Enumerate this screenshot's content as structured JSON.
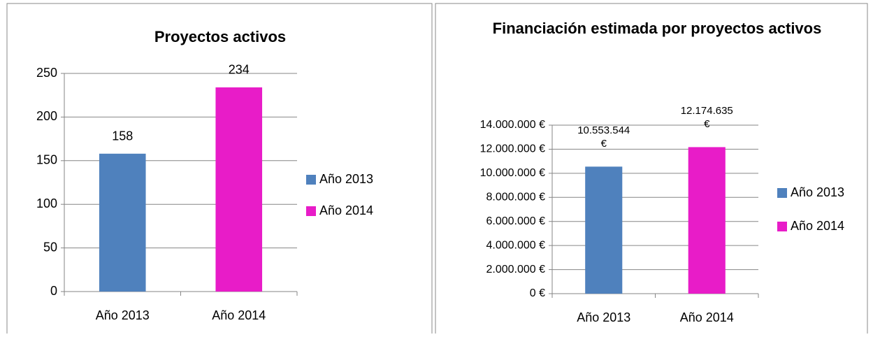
{
  "chart_data": [
    {
      "type": "bar",
      "title": "Proyectos activos",
      "categories": [
        "Año 2013",
        "Año 2014"
      ],
      "values": [
        158,
        234
      ],
      "colors": [
        "#4f81bd",
        "#e81cc8"
      ],
      "ylim": [
        0,
        250
      ],
      "yticks": [
        0,
        50,
        100,
        150,
        200,
        250
      ],
      "grid": true,
      "legend": "right"
    },
    {
      "type": "bar",
      "title": "Financiación estimada por proyectos activos",
      "categories": [
        "Año 2013",
        "Año 2014"
      ],
      "values": [
        10553544,
        12174635
      ],
      "value_labels": [
        "10.553.544 €",
        "12.174.635 €"
      ],
      "colors": [
        "#4f81bd",
        "#e81cc8"
      ],
      "ylim": [
        0,
        14000000
      ],
      "yticks": [
        {
          "value": 0,
          "label": "0 €"
        },
        {
          "value": 2000000,
          "label": "2.000.000 €"
        },
        {
          "value": 4000000,
          "label": "4.000.000 €"
        },
        {
          "value": 6000000,
          "label": "6.000.000 €"
        },
        {
          "value": 8000000,
          "label": "8.000.000 €"
        },
        {
          "value": 10000000,
          "label": "10.000.000 €"
        },
        {
          "value": 12000000,
          "label": "12.000.000 €"
        },
        {
          "value": 14000000,
          "label": "14.000.000 €"
        }
      ],
      "grid": true,
      "legend": "right"
    }
  ]
}
